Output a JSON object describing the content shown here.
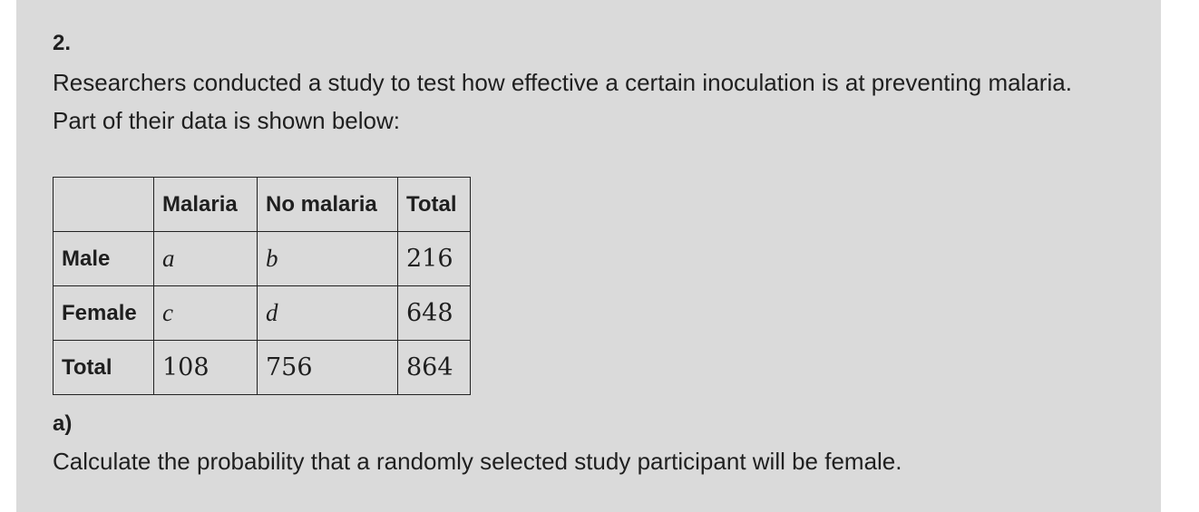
{
  "question": {
    "number": "2.",
    "intro": "Researchers conducted a study to test how effective a certain inoculation is at preventing malaria. Part of their data is shown below:"
  },
  "table": {
    "headers": [
      "",
      "Malaria",
      "No malaria",
      "Total"
    ],
    "rows": [
      {
        "label": "Male",
        "cells": [
          "a",
          "b",
          "216"
        ]
      },
      {
        "label": "Female",
        "cells": [
          "c",
          "d",
          "648"
        ]
      },
      {
        "label": "Total",
        "cells": [
          "108",
          "756",
          "864"
        ]
      }
    ]
  },
  "part_a": {
    "label": "a)",
    "text": "Calculate the probability that a randomly selected study participant will be female."
  }
}
